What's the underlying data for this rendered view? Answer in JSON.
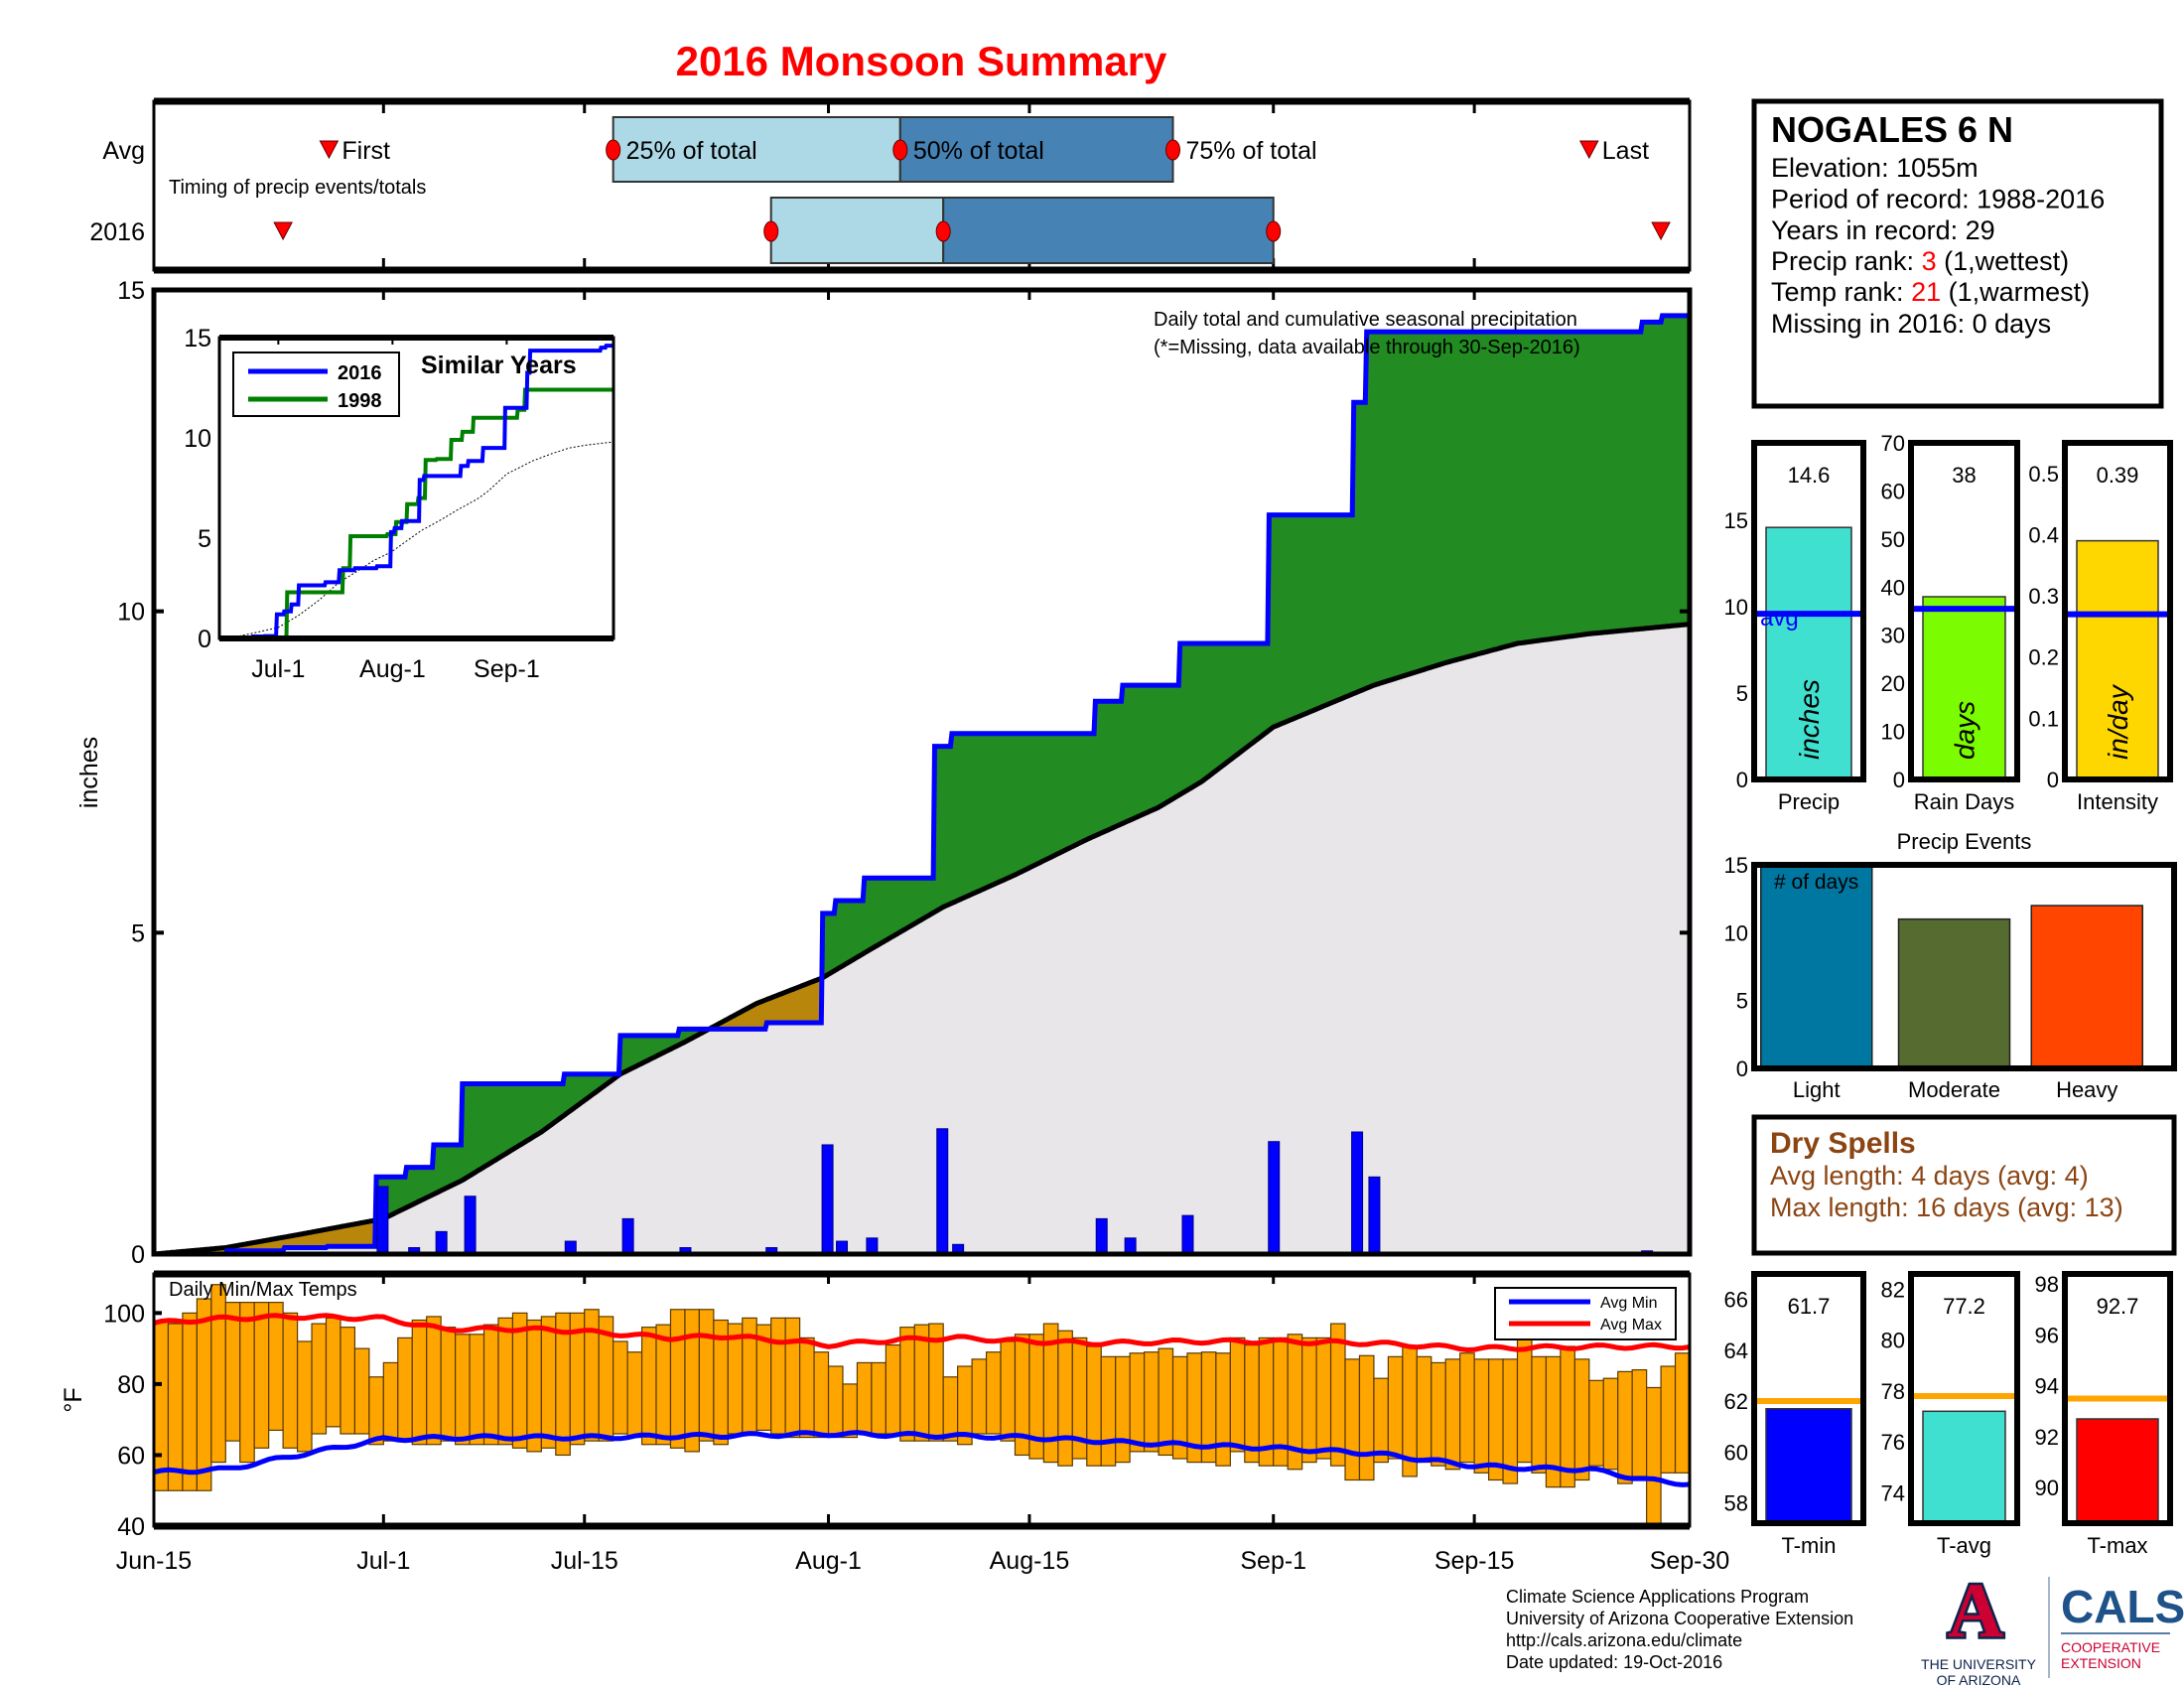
{
  "title": "2016 Monsoon Summary",
  "timing": {
    "row_labels": [
      "Avg",
      "2016"
    ],
    "caption": "Timing of precip events/totals",
    "labels": {
      "first": "First",
      "p25": "25% of total",
      "p50": "50% of total",
      "p75": "75% of total",
      "last": "Last"
    },
    "avg_days": {
      "first": 12.2,
      "p25": 32,
      "p50": 52,
      "p75": 71,
      "last": 100
    },
    "y2016_days": {
      "first": 9,
      "p25": 43,
      "p50": 55,
      "p75": 78,
      "last": 105
    },
    "colors": {
      "early": "#add8e6",
      "late": "#4682b4",
      "marker": "#ff0000"
    }
  },
  "station": {
    "name": "NOGALES 6 N",
    "elevation": "Elevation: 1055m",
    "period": "Period of record: 1988-2016",
    "years": "Years in record: 29",
    "precip_rank_label": "Precip rank: ",
    "precip_rank": "3",
    "precip_rank_note": " (1,wettest)",
    "temp_rank_label": "Temp rank: ",
    "temp_rank": "21",
    "temp_rank_note": " (1,warmest)",
    "missing": "Missing in 2016: 0 days"
  },
  "dry_spells": {
    "title": "Dry Spells",
    "avg_length": "Avg length: 4 days (avg: 4)",
    "max_length": "Max length: 16 days (avg: 13)",
    "color": "#8b4513"
  },
  "footer": {
    "lines": [
      "Climate Science Applications Program",
      "University of Arizona Cooperative Extension",
      "http://cals.arizona.edu/climate",
      " Date updated: 19-Oct-2016"
    ]
  },
  "logos": {
    "ua_letter": "A",
    "ua_line1": "THE UNIVERSITY",
    "ua_line2": "OF ARIZONA",
    "cals": "CALS",
    "cals_line1": "COOPERATIVE",
    "cals_line2": "EXTENSION"
  },
  "chart_data": [
    {
      "id": "cumulative",
      "type": "area",
      "title": "Daily total and cumulative seasonal precipitation",
      "note": "(*=Missing, data available through 30-Sep-2016)",
      "ylabel": "inches",
      "ylim": [
        0,
        15
      ],
      "yticks": [
        0,
        5,
        10,
        15
      ],
      "x_unit": "days since Jun-15",
      "xlim": [
        0,
        107
      ],
      "xticks": [
        {
          "day": 0,
          "label": "Jun-15"
        },
        {
          "day": 16,
          "label": "Jul-1"
        },
        {
          "day": 30,
          "label": "Jul-15"
        },
        {
          "day": 47,
          "label": "Aug-1"
        },
        {
          "day": 61,
          "label": "Aug-15"
        },
        {
          "day": 78,
          "label": "Sep-1"
        },
        {
          "day": 92,
          "label": "Sep-15"
        },
        {
          "day": 107,
          "label": "Sep-30"
        }
      ],
      "cumulative_2016_steps": [
        [
          0,
          0
        ],
        [
          5,
          0.05
        ],
        [
          9,
          0.1
        ],
        [
          12,
          0.12
        ],
        [
          15.4,
          1.2
        ],
        [
          17.5,
          1.35
        ],
        [
          19.5,
          1.7
        ],
        [
          21.5,
          2.65
        ],
        [
          28.6,
          2.8
        ],
        [
          32.5,
          3.4
        ],
        [
          36.6,
          3.5
        ],
        [
          42.7,
          3.6
        ],
        [
          46.6,
          5.3
        ],
        [
          47.5,
          5.5
        ],
        [
          49.5,
          5.85
        ],
        [
          54.4,
          7.9
        ],
        [
          55.6,
          8.1
        ],
        [
          65.6,
          8.6
        ],
        [
          67.5,
          8.85
        ],
        [
          71.5,
          9.5
        ],
        [
          77.6,
          11.5
        ],
        [
          83.5,
          13.25
        ],
        [
          84.4,
          14.35
        ],
        [
          103.6,
          14.5
        ],
        [
          105,
          14.6
        ]
      ],
      "cumulative_avg": [
        [
          0,
          0
        ],
        [
          5,
          0.1
        ],
        [
          10,
          0.3
        ],
        [
          16,
          0.55
        ],
        [
          21.5,
          1.15
        ],
        [
          27,
          1.9
        ],
        [
          32.5,
          2.8
        ],
        [
          37,
          3.3
        ],
        [
          42,
          3.9
        ],
        [
          46.6,
          4.3
        ],
        [
          50,
          4.75
        ],
        [
          55,
          5.4
        ],
        [
          60,
          5.9
        ],
        [
          65,
          6.45
        ],
        [
          70,
          6.95
        ],
        [
          73,
          7.35
        ],
        [
          78,
          8.2
        ],
        [
          85,
          8.85
        ],
        [
          90,
          9.2
        ],
        [
          95,
          9.5
        ],
        [
          100,
          9.65
        ],
        [
          107,
          9.8
        ]
      ],
      "daily_2016": [
        [
          15.9,
          1.05
        ],
        [
          18.1,
          0.1
        ],
        [
          20,
          0.35
        ],
        [
          22,
          0.9
        ],
        [
          29,
          0.2
        ],
        [
          33,
          0.55
        ],
        [
          37,
          0.1
        ],
        [
          43,
          0.1
        ],
        [
          46.9,
          1.7
        ],
        [
          47.9,
          0.2
        ],
        [
          50,
          0.25
        ],
        [
          54.9,
          1.95
        ],
        [
          56,
          0.15
        ],
        [
          66,
          0.55
        ],
        [
          68,
          0.25
        ],
        [
          72,
          0.6
        ],
        [
          78,
          1.75
        ],
        [
          83.8,
          1.9
        ],
        [
          85,
          1.2
        ],
        [
          104,
          0.05
        ]
      ],
      "colors": {
        "above": "#228b22",
        "below": "#b8860b",
        "avg_fill": "#e8e6e8",
        "line_2016": "#0000ff",
        "daily": "#0000ff"
      }
    },
    {
      "id": "similar_years",
      "type": "line",
      "title": "Similar Years",
      "ylim": [
        0,
        15
      ],
      "yticks": [
        0,
        5,
        10,
        15
      ],
      "xticks": [
        {
          "day": 16,
          "label": "Jul-1"
        },
        {
          "day": 47,
          "label": "Aug-1"
        },
        {
          "day": 78,
          "label": "Sep-1"
        }
      ],
      "legend": [
        {
          "name": "2016",
          "color": "#0000ff"
        },
        {
          "name": "1998",
          "color": "#008000"
        }
      ],
      "series_1998_steps": [
        [
          0,
          0
        ],
        [
          18.2,
          2.3
        ],
        [
          33.5,
          3.5
        ],
        [
          35.4,
          5.1
        ],
        [
          45.5,
          5.2
        ],
        [
          48,
          5.8
        ],
        [
          51,
          6.7
        ],
        [
          54,
          7.0
        ],
        [
          56,
          8.9
        ],
        [
          59,
          8.95
        ],
        [
          63,
          9.9
        ],
        [
          66,
          10.3
        ],
        [
          69,
          11.0
        ],
        [
          78,
          11.0
        ],
        [
          81,
          11.4
        ],
        [
          83,
          12.4
        ]
      ]
    },
    {
      "id": "temps",
      "type": "bar",
      "title": "Daily Min/Max Temps",
      "ylabel": "°F",
      "ylim": [
        40,
        111
      ],
      "yticks": [
        40,
        60,
        80,
        100
      ],
      "legend": [
        {
          "name": "Avg Min",
          "color": "#0000ff"
        },
        {
          "name": "Avg Max",
          "color": "#ff0000"
        }
      ],
      "daily_max": [
        97.7,
        97,
        100,
        104,
        108,
        103,
        103,
        103,
        103,
        100,
        92,
        97,
        98.6,
        96,
        90,
        82,
        86,
        93,
        98,
        99,
        96,
        94,
        94,
        96.7,
        98.6,
        100,
        98,
        99,
        100,
        100,
        101,
        99,
        92,
        89,
        96,
        96.7,
        101,
        101,
        101,
        98,
        97,
        98.6,
        96.7,
        98.6,
        98.6,
        93,
        89,
        85,
        80,
        86,
        86,
        91,
        96,
        96.7,
        97,
        82,
        85,
        87,
        89,
        92,
        94,
        94,
        97,
        95,
        93,
        90.6,
        87.7,
        87.7,
        88.7,
        89,
        90,
        87.7,
        88.7,
        89,
        88.7,
        93,
        91,
        93,
        93,
        94,
        93,
        93,
        97,
        87,
        88,
        81.6,
        87.7,
        90.6,
        87.7,
        86,
        87,
        88.7,
        87,
        87,
        87,
        93,
        87.7,
        87.7,
        90.6,
        87,
        81,
        81.6,
        83.5,
        84,
        79,
        85,
        88.7
      ],
      "daily_min": [
        50,
        50,
        50,
        50,
        58,
        64,
        58,
        62,
        67,
        62,
        61,
        66,
        68,
        66,
        66,
        63,
        64,
        64,
        63,
        63,
        64,
        63,
        63,
        63,
        63,
        62,
        61,
        62,
        60,
        63,
        64,
        64,
        66,
        65,
        63,
        63,
        62,
        61,
        64,
        63,
        66,
        66,
        67,
        66,
        65,
        65,
        65,
        65,
        65,
        66,
        66,
        66,
        64,
        64,
        64,
        64,
        63,
        66,
        66,
        64,
        60,
        59,
        58,
        57,
        59,
        57,
        57,
        58,
        61,
        61,
        60,
        59,
        58,
        58,
        57,
        61,
        58,
        57,
        57,
        56,
        58,
        59,
        57,
        53,
        53,
        58,
        59,
        54,
        58,
        57,
        56,
        58,
        55,
        53,
        52,
        58,
        55,
        51,
        51,
        53,
        57,
        56,
        52,
        54,
        40,
        55,
        55
      ],
      "avg_max_knots": [
        [
          0,
          97.2
        ],
        [
          5,
          98.5
        ],
        [
          10,
          99
        ],
        [
          16,
          98.5
        ],
        [
          20,
          95.5
        ],
        [
          26,
          95.5
        ],
        [
          30,
          94.8
        ],
        [
          36,
          93
        ],
        [
          40,
          93.5
        ],
        [
          47,
          91
        ],
        [
          52,
          92.5
        ],
        [
          56,
          93
        ],
        [
          61,
          92
        ],
        [
          66,
          91.5
        ],
        [
          72,
          92
        ],
        [
          78,
          92
        ],
        [
          85,
          91.5
        ],
        [
          92,
          90
        ],
        [
          100,
          90.5
        ],
        [
          107,
          90.6
        ]
      ],
      "avg_min_knots": [
        [
          0,
          55.2
        ],
        [
          5,
          56
        ],
        [
          10,
          60
        ],
        [
          16,
          64.5
        ],
        [
          22,
          65
        ],
        [
          30,
          65
        ],
        [
          40,
          65.5
        ],
        [
          47,
          66
        ],
        [
          55,
          65.5
        ],
        [
          61,
          65
        ],
        [
          68,
          63.5
        ],
        [
          78,
          62
        ],
        [
          85,
          60.5
        ],
        [
          92,
          57
        ],
        [
          96,
          56.3
        ],
        [
          100,
          56
        ],
        [
          104,
          53
        ],
        [
          107,
          51.9
        ]
      ],
      "bar_color": "#ffa500"
    },
    {
      "id": "season_totals",
      "type": "bar",
      "bars": [
        {
          "label": "Precip",
          "unit": "inches",
          "value": 14.6,
          "value_label": "14.6",
          "avg": 9.6,
          "avg_label": "avg",
          "ylim": [
            0,
            19.5
          ],
          "yticks": [
            0,
            5,
            10,
            15
          ],
          "color": "#40e0d0"
        },
        {
          "label": "Rain Days",
          "unit": "days",
          "value": 38,
          "value_label": "38",
          "avg": 35.5,
          "ylim": [
            0,
            70
          ],
          "yticks": [
            0,
            10,
            20,
            30,
            40,
            50,
            60,
            70
          ],
          "color": "#7cfc00"
        },
        {
          "label": "Intensity",
          "unit": "in/day",
          "value": 0.39,
          "value_label": "0.39",
          "avg": 0.27,
          "ylim": [
            0,
            0.55
          ],
          "yticks": [
            0,
            0.1,
            0.2,
            0.3,
            0.4,
            0.5
          ],
          "color": "#ffd700"
        }
      ]
    },
    {
      "id": "precip_events",
      "type": "bar",
      "title": "Precip Events",
      "annotation": "# of days",
      "ylim": [
        0,
        15
      ],
      "yticks": [
        0,
        5,
        10,
        15
      ],
      "categories": [
        "Light",
        "Moderate",
        "Heavy"
      ],
      "values": [
        15,
        11,
        12
      ],
      "colors": [
        "#0077a0",
        "#556b2f",
        "#ff4500"
      ]
    },
    {
      "id": "season_temps",
      "type": "bar",
      "avg_color": "#ffa500",
      "bars": [
        {
          "label": "T-min",
          "value": 61.7,
          "value_label": "61.7",
          "avg": 62.0,
          "ylim": [
            57.2,
            67.0
          ],
          "yticks": [
            58,
            60,
            62,
            64,
            66
          ],
          "color": "#0000ff"
        },
        {
          "label": "T-avg",
          "value": 77.2,
          "value_label": "77.2",
          "avg": 77.8,
          "ylim": [
            72.8,
            82.6
          ],
          "yticks": [
            74,
            76,
            78,
            80,
            82
          ],
          "color": "#40e0d0"
        },
        {
          "label": "T-max",
          "value": 92.7,
          "value_label": "92.7",
          "avg": 93.5,
          "ylim": [
            88.6,
            98.4
          ],
          "yticks": [
            90,
            92,
            94,
            96,
            98
          ],
          "color": "#ff0000"
        }
      ]
    }
  ]
}
